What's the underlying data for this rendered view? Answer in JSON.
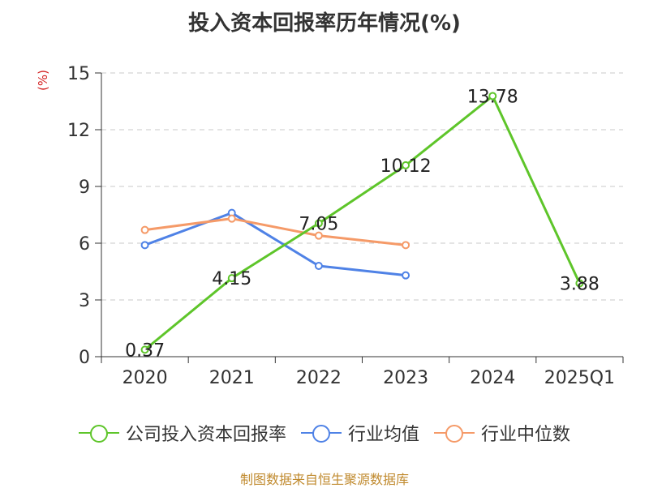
{
  "chart_data": {
    "type": "line",
    "title": "投入资本回报率历年情况(%)",
    "ylabel": "(%)",
    "categories": [
      "2020",
      "2021",
      "2022",
      "2023",
      "2024",
      "2025Q1"
    ],
    "ylim": [
      0,
      15
    ],
    "yticks": [
      0,
      3,
      6,
      9,
      12,
      15
    ],
    "grid": true,
    "legend_position": "bottom",
    "series": [
      {
        "name": "公司投入资本回报率",
        "color": "#5ec52a",
        "values": [
          0.37,
          4.15,
          7.05,
          10.12,
          13.78,
          3.88
        ],
        "data_labels": true
      },
      {
        "name": "行业均值",
        "color": "#4f82e6",
        "values": [
          5.9,
          7.6,
          4.8,
          4.3,
          null,
          null
        ],
        "data_labels": false
      },
      {
        "name": "行业中位数",
        "color": "#f59a68",
        "values": [
          6.7,
          7.3,
          6.4,
          5.9,
          null,
          null
        ],
        "data_labels": false
      }
    ]
  },
  "footer": {
    "source": "制图数据来自恒生聚源数据库"
  }
}
